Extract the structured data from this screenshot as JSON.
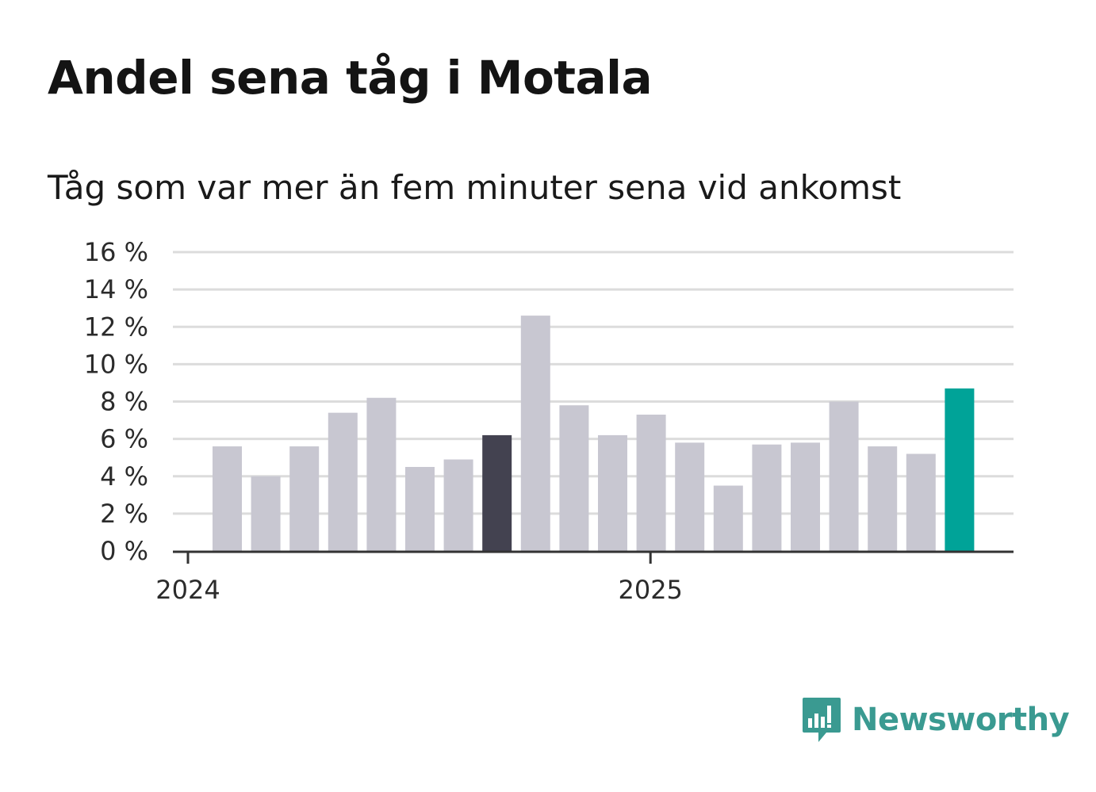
{
  "title": "Andel sena tåg i Motala",
  "subtitle": "Tåg som var mer än fem minuter sena vid ankomst",
  "brand": {
    "name": "Newsworthy",
    "icon": "newsworthy-logo-icon",
    "color": "#3a9a91"
  },
  "colors": {
    "bar_default": "#c8c7d1",
    "bar_highlight_dark": "#434250",
    "bar_highlight_latest": "#00a398",
    "grid": "#dcdcdc",
    "axis": "#333333"
  },
  "chart_data": {
    "type": "bar",
    "categories": [
      "2024-01",
      "2024-02",
      "2024-03",
      "2024-04",
      "2024-05",
      "2024-06",
      "2024-07",
      "2024-08",
      "2024-09",
      "2024-10",
      "2024-11",
      "2024-12",
      "2025-01",
      "2025-02",
      "2025-03",
      "2025-04",
      "2025-05",
      "2025-06",
      "2025-07",
      "2025-08"
    ],
    "values": [
      5.6,
      4.0,
      5.6,
      7.4,
      8.2,
      4.5,
      4.9,
      6.2,
      12.6,
      7.8,
      6.2,
      7.3,
      5.8,
      3.5,
      5.7,
      5.8,
      8.0,
      5.6,
      5.2,
      8.7
    ],
    "highlights": {
      "2024-08": "dark",
      "2025-08": "latest"
    },
    "ylim": [
      0,
      16
    ],
    "yticks": [
      0,
      2,
      4,
      6,
      8,
      10,
      12,
      14,
      16
    ],
    "ytick_suffix": " %",
    "xticks": [
      {
        "label": "2024",
        "at": "2024-01"
      },
      {
        "label": "2025",
        "at": "2025-01"
      }
    ],
    "grid": true,
    "legend": "none",
    "xlabel": "",
    "ylabel": ""
  }
}
